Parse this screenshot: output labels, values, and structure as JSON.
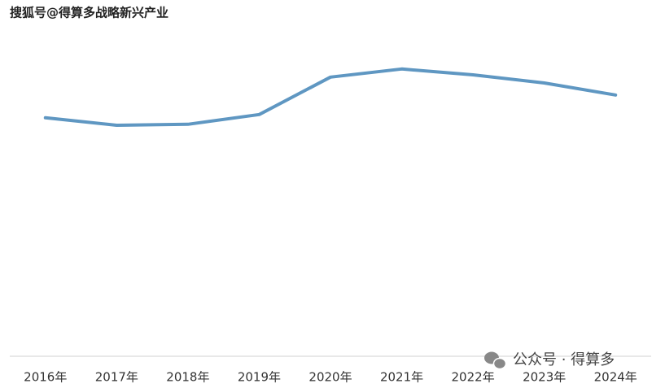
{
  "chart_data": {
    "type": "line",
    "categories": [
      "2016年",
      "2017年",
      "2018年",
      "2019年",
      "2020年",
      "2021年",
      "2022年",
      "2023年",
      "2024年"
    ],
    "series": [
      {
        "color": "#5f97c2",
        "values": [
          73.3,
          71,
          71.3,
          74.3,
          85.8,
          88.3,
          86.5,
          84,
          80.3
        ]
      }
    ],
    "ylim": [
      0,
      100
    ]
  },
  "watermarks": {
    "top": "搜狐号@得算多战略新兴产业",
    "bottom": "公众号 · 得算多"
  }
}
